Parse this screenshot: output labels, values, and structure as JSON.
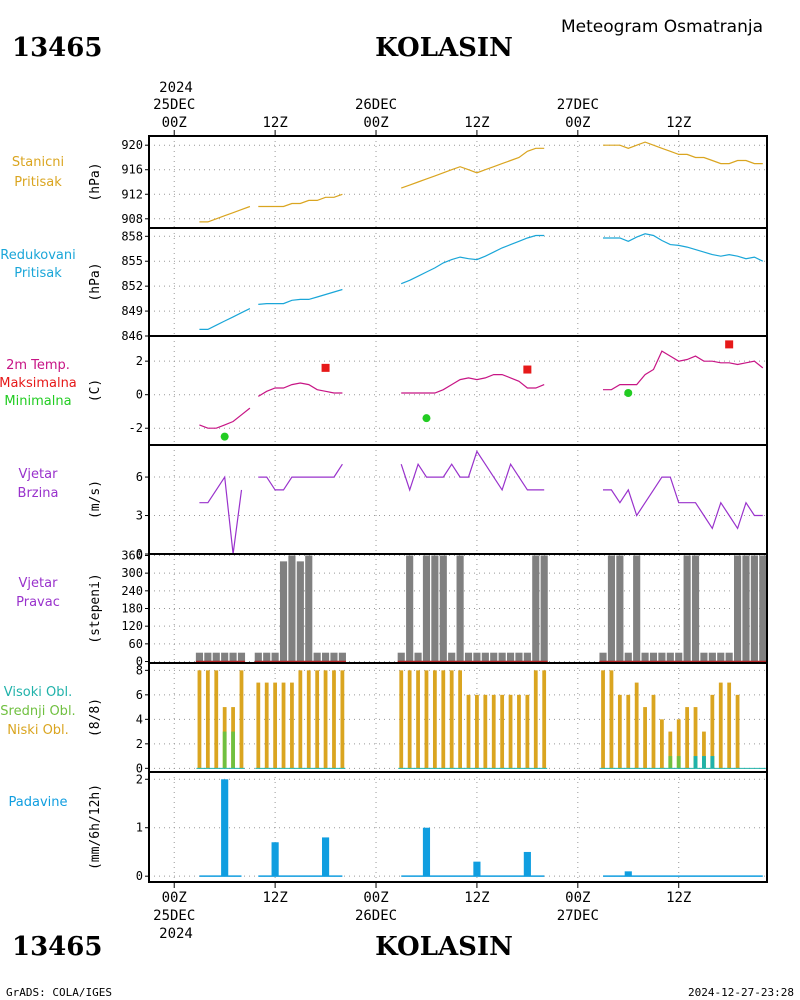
{
  "header": {
    "station_id": "13465",
    "station_name": "KOLASIN",
    "product": "Meteogram Osmatranja"
  },
  "footer": {
    "station_id": "13465",
    "station_name": "KOLASIN",
    "credit": "GrADS: COLA/IGES",
    "timestamp": "2024-12-27-23:28"
  },
  "time_axis": {
    "top_year": "2024",
    "bottom_year": "2024",
    "ticks": [
      {
        "hour": 0,
        "line1": "25DEC",
        "line2": "00Z"
      },
      {
        "hour": 12,
        "line1": "",
        "line2": "12Z"
      },
      {
        "hour": 24,
        "line1": "26DEC",
        "line2": "00Z"
      },
      {
        "hour": 36,
        "line1": "",
        "line2": "12Z"
      },
      {
        "hour": 48,
        "line1": "27DEC",
        "line2": "00Z"
      },
      {
        "hour": 60,
        "line1": "",
        "line2": "12Z"
      }
    ],
    "bottom_ticks": [
      {
        "hour": 0,
        "line1": "00Z",
        "line2": "25DEC"
      },
      {
        "hour": 12,
        "line1": "12Z",
        "line2": ""
      },
      {
        "hour": 24,
        "line1": "00Z",
        "line2": "26DEC"
      },
      {
        "hour": 36,
        "line1": "12Z",
        "line2": ""
      },
      {
        "hour": 48,
        "line1": "00Z",
        "line2": "27DEC"
      },
      {
        "hour": 60,
        "line1": "12Z",
        "line2": ""
      }
    ],
    "x_range_hours": [
      -3,
      70.5
    ]
  },
  "colors": {
    "station_pressure": "#daa520",
    "reduced_pressure": "#1aa6d8",
    "temperature": "#c71585",
    "tmax": "#e61919",
    "tmin": "#22cc22",
    "wind_speed": "#9932cc",
    "wind_dir_bar": "#808080",
    "wind_dir_base": "#b22222",
    "cloud_high": "#20b2aa",
    "cloud_mid": "#70c040",
    "cloud_low": "#daa520",
    "precip": "#109ee0",
    "grid": "#999999"
  },
  "chart_data": [
    {
      "type": "line",
      "panel": "station_pressure",
      "label_lines": [
        "Stanicni",
        "Pritisak"
      ],
      "ylabel": "(hPa)",
      "ylim": [
        906.5,
        921.5
      ],
      "yticks": [
        "908",
        "912",
        "916",
        "920"
      ],
      "segments": [
        {
          "x": [
            3,
            4,
            5,
            6,
            7,
            8,
            9
          ],
          "y": [
            907.5,
            907.5,
            908.0,
            908.5,
            909.0,
            909.5,
            910.0
          ]
        },
        {
          "x": [
            10,
            11,
            12,
            13,
            14,
            15,
            16,
            17,
            18,
            19,
            20
          ],
          "y": [
            910.0,
            910.0,
            910.0,
            910.0,
            910.5,
            910.5,
            911.0,
            911.0,
            911.5,
            911.5,
            912.0
          ]
        },
        {
          "x": [
            27,
            28,
            29,
            30,
            31,
            32,
            33,
            34,
            35,
            36,
            37,
            38,
            39,
            40,
            41,
            42,
            43,
            44
          ],
          "y": [
            913.0,
            913.5,
            914.0,
            914.5,
            915.0,
            915.5,
            916.0,
            916.5,
            916.0,
            915.5,
            916.0,
            916.5,
            917.0,
            917.5,
            918.0,
            919.0,
            919.5,
            919.5
          ]
        },
        {
          "x": [
            51,
            52,
            53,
            54,
            55,
            56,
            57,
            58,
            59,
            60,
            61,
            62,
            63,
            64,
            65,
            66,
            67,
            68,
            69,
            70
          ],
          "y": [
            920.0,
            920.0,
            920.0,
            919.5,
            920.0,
            920.5,
            920.0,
            919.5,
            919.0,
            918.5,
            918.5,
            918.0,
            918.0,
            917.5,
            917.0,
            917.0,
            917.5,
            917.5,
            917.0,
            917.0
          ]
        }
      ]
    },
    {
      "type": "line",
      "panel": "reduced_pressure",
      "label_lines": [
        "Redukovani",
        "Pritisak"
      ],
      "ylabel": "(hPa)",
      "ylim": [
        846,
        859
      ],
      "yticks": [
        "846",
        "849",
        "852",
        "855",
        "858"
      ],
      "segments": [
        {
          "x": [
            3,
            4,
            5,
            6,
            7,
            8,
            9
          ],
          "y": [
            846.8,
            846.8,
            847.3,
            847.8,
            848.3,
            848.8,
            849.3
          ]
        },
        {
          "x": [
            10,
            11,
            12,
            13,
            14,
            15,
            16,
            17,
            18,
            19,
            20
          ],
          "y": [
            849.8,
            849.9,
            849.9,
            849.9,
            850.3,
            850.4,
            850.4,
            850.7,
            851.0,
            851.3,
            851.6
          ]
        },
        {
          "x": [
            27,
            28,
            29,
            30,
            31,
            32,
            33,
            34,
            35,
            36,
            37,
            38,
            39,
            40,
            41,
            42,
            43,
            44
          ],
          "y": [
            852.3,
            852.7,
            853.2,
            853.7,
            854.2,
            854.8,
            855.2,
            855.5,
            855.3,
            855.2,
            855.6,
            856.1,
            856.6,
            857.0,
            857.4,
            857.8,
            858.1,
            858.1
          ]
        },
        {
          "x": [
            51,
            52,
            53,
            54,
            55,
            56,
            57,
            58,
            59,
            60,
            61,
            62,
            63,
            64,
            65,
            66,
            67,
            68,
            69,
            70
          ],
          "y": [
            857.8,
            857.8,
            857.8,
            857.4,
            857.9,
            858.3,
            858.1,
            857.5,
            857.0,
            856.9,
            856.7,
            856.4,
            856.1,
            855.8,
            855.6,
            855.8,
            855.6,
            855.3,
            855.5,
            855.0
          ]
        }
      ]
    },
    {
      "type": "line",
      "panel": "temperature",
      "label_lines": [
        "2m Temp.",
        "Maksimalna",
        "Minimalna"
      ],
      "ylabel": "(C)",
      "ylim": [
        -3,
        3.5
      ],
      "yticks": [
        "-2",
        "0",
        "2"
      ],
      "segments": [
        {
          "x": [
            3,
            4,
            5,
            6,
            7,
            8,
            9
          ],
          "y": [
            -1.8,
            -2.0,
            -2.0,
            -1.8,
            -1.6,
            -1.2,
            -0.8
          ]
        },
        {
          "x": [
            10,
            11,
            12,
            13,
            14,
            15,
            16,
            17,
            18,
            19,
            20
          ],
          "y": [
            -0.1,
            0.2,
            0.4,
            0.4,
            0.6,
            0.7,
            0.6,
            0.3,
            0.2,
            0.1,
            0.1
          ]
        },
        {
          "x": [
            27,
            28,
            29,
            30,
            31,
            32,
            33,
            34,
            35,
            36,
            37,
            38,
            39,
            40,
            41,
            42,
            43,
            44
          ],
          "y": [
            0.1,
            0.1,
            0.1,
            0.1,
            0.1,
            0.3,
            0.6,
            0.9,
            1.0,
            0.9,
            1.0,
            1.2,
            1.2,
            1.0,
            0.8,
            0.4,
            0.4,
            0.6
          ]
        },
        {
          "x": [
            51,
            52,
            53,
            54,
            55,
            56,
            57,
            58,
            59,
            60,
            61,
            62,
            63,
            64,
            65,
            66,
            67,
            68,
            69,
            70
          ],
          "y": [
            0.3,
            0.3,
            0.6,
            0.6,
            0.6,
            1.2,
            1.5,
            2.6,
            2.3,
            2.0,
            2.1,
            2.3,
            2.0,
            2.0,
            1.9,
            1.9,
            1.8,
            1.9,
            2.0,
            1.6
          ]
        }
      ],
      "tmax_points": {
        "x": [
          18,
          42,
          66
        ],
        "y": [
          1.6,
          1.5,
          3.0
        ]
      },
      "tmin_points": {
        "x": [
          6,
          30,
          54
        ],
        "y": [
          -2.5,
          -1.4,
          0.1
        ]
      }
    },
    {
      "type": "line",
      "panel": "wind_speed",
      "label_lines": [
        "Vjetar",
        "Brzina"
      ],
      "ylabel": "(m/s)",
      "ylim": [
        0,
        8.5
      ],
      "yticks": [
        "0",
        "3",
        "6"
      ],
      "segments": [
        {
          "x": [
            3,
            4,
            5,
            6,
            7,
            8
          ],
          "y": [
            4,
            4,
            5,
            6,
            0,
            5
          ]
        },
        {
          "x": [
            10,
            11,
            12,
            13,
            14,
            15,
            16,
            17,
            18,
            19,
            20
          ],
          "y": [
            6,
            6,
            5,
            5,
            6,
            6,
            6,
            6,
            6,
            6,
            7
          ]
        },
        {
          "x": [
            27,
            28,
            29,
            30,
            31,
            32,
            33,
            34,
            35,
            36,
            37,
            38,
            39,
            40,
            41,
            42,
            43,
            44
          ],
          "y": [
            7,
            5,
            7,
            6,
            6,
            6,
            7,
            6,
            6,
            8,
            7,
            6,
            5,
            7,
            6,
            5,
            5,
            5
          ]
        },
        {
          "x": [
            51,
            52,
            53,
            54,
            55,
            56,
            57,
            58,
            59,
            60,
            61,
            62,
            63,
            64,
            65,
            66,
            67,
            68,
            69,
            70
          ],
          "y": [
            5,
            5,
            4,
            5,
            3,
            4,
            5,
            6,
            6,
            4,
            4,
            4,
            3,
            2,
            4,
            3,
            2,
            4,
            3,
            3
          ]
        }
      ]
    },
    {
      "type": "bar",
      "panel": "wind_direction",
      "label_lines": [
        "Vjetar",
        "Pravac"
      ],
      "ylabel": "(stepeni)",
      "ylim": [
        -5,
        365
      ],
      "yticks": [
        "0",
        "60",
        "120",
        "180",
        "240",
        "300",
        "360"
      ],
      "x": [
        3,
        4,
        5,
        6,
        7,
        8,
        10,
        11,
        12,
        13,
        14,
        15,
        16,
        17,
        18,
        19,
        20,
        27,
        28,
        29,
        30,
        31,
        32,
        33,
        34,
        35,
        36,
        37,
        38,
        39,
        40,
        41,
        42,
        43,
        44,
        51,
        52,
        53,
        54,
        55,
        56,
        57,
        58,
        59,
        60,
        61,
        62,
        63,
        64,
        65,
        66,
        67,
        68,
        69,
        70
      ],
      "values": [
        30,
        30,
        30,
        30,
        30,
        30,
        30,
        30,
        30,
        340,
        360,
        340,
        360,
        30,
        30,
        30,
        30,
        30,
        360,
        30,
        360,
        360,
        360,
        30,
        360,
        30,
        30,
        30,
        30,
        30,
        30,
        30,
        30,
        360,
        360,
        30,
        360,
        360,
        30,
        360,
        30,
        30,
        30,
        30,
        30,
        360,
        360,
        30,
        30,
        30,
        30,
        360,
        360,
        360,
        360
      ]
    },
    {
      "type": "bar",
      "panel": "clouds",
      "label_lines": [
        "Visoki Obl.",
        "Srednji Obl.",
        "Niski Obl."
      ],
      "ylabel": "(8/8)",
      "ylim": [
        -0.3,
        8.6
      ],
      "yticks": [
        "0",
        "2",
        "4",
        "6",
        "8"
      ],
      "x": [
        3,
        4,
        5,
        6,
        7,
        8,
        10,
        11,
        12,
        13,
        14,
        15,
        16,
        17,
        18,
        19,
        20,
        27,
        28,
        29,
        30,
        31,
        32,
        33,
        34,
        35,
        36,
        37,
        38,
        39,
        40,
        41,
        42,
        43,
        44,
        51,
        52,
        53,
        54,
        55,
        56,
        57,
        58,
        59,
        60,
        61,
        62,
        63,
        64,
        65,
        66,
        67,
        68,
        69,
        70
      ],
      "series": [
        {
          "name": "Niski Obl.",
          "values": [
            8,
            8,
            8,
            5,
            5,
            8,
            7,
            7,
            7,
            7,
            7,
            8,
            8,
            8,
            8,
            8,
            8,
            8,
            8,
            8,
            8,
            8,
            8,
            8,
            8,
            6,
            6,
            6,
            6,
            6,
            6,
            6,
            6,
            8,
            8,
            8,
            8,
            6,
            6,
            7,
            5,
            6,
            4,
            3,
            4,
            5,
            5,
            3,
            6,
            7,
            7,
            6,
            0,
            0,
            0
          ]
        },
        {
          "name": "Srednji Obl.",
          "values": [
            0,
            0,
            0,
            3,
            3,
            0,
            0,
            0,
            0,
            0,
            0,
            0,
            0,
            0,
            0,
            0,
            0,
            0,
            0,
            0,
            0,
            0,
            0,
            0,
            0,
            0,
            0,
            0,
            0,
            0,
            0,
            0,
            0,
            0,
            0,
            0,
            0,
            0,
            0,
            0,
            0,
            0,
            0,
            1,
            1,
            0,
            1,
            1,
            1,
            0,
            0,
            0,
            0,
            0,
            0
          ]
        },
        {
          "name": "Visoki Obl.",
          "values": [
            0,
            0,
            0,
            0,
            0,
            0,
            0,
            0,
            0,
            0,
            0,
            0,
            0,
            0,
            0,
            0,
            0,
            0,
            0,
            0,
            0,
            0,
            0,
            0,
            0,
            0,
            0,
            0,
            0,
            0,
            0,
            0,
            0,
            0,
            0,
            0,
            0,
            0,
            0,
            0,
            0,
            0,
            0,
            0,
            0,
            0,
            1,
            1,
            1,
            0,
            0,
            0,
            0,
            0,
            0
          ]
        }
      ]
    },
    {
      "type": "bar",
      "panel": "precipitation",
      "label_lines": [
        "Padavine"
      ],
      "ylabel": "(mm/6h/12h)",
      "ylim": [
        -0.12,
        2.15
      ],
      "yticks": [
        "0",
        "1",
        "2"
      ],
      "x": [
        6,
        12,
        18,
        30,
        36,
        42,
        54
      ],
      "values": [
        2.0,
        0.7,
        0.8,
        1.0,
        0.3,
        0.5,
        0.1
      ]
    }
  ]
}
